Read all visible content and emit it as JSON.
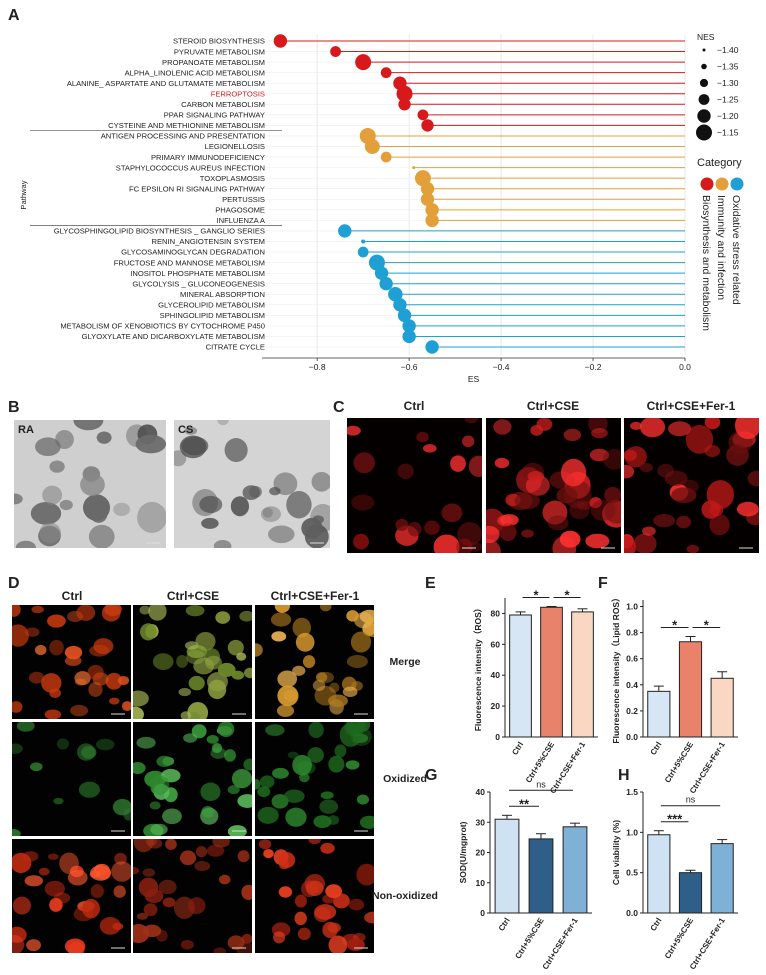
{
  "panel_labels": [
    "A",
    "B",
    "C",
    "D",
    "E",
    "F",
    "G",
    "H"
  ],
  "panel_b": {
    "labels": [
      "RA",
      "CS"
    ]
  },
  "panel_c": {
    "columns": [
      "Ctrl",
      "Ctrl+CSE",
      "Ctrl+CSE+Fer-1"
    ]
  },
  "panel_d": {
    "columns": [
      "Ctrl",
      "Ctrl+CSE",
      "Ctrl+CSE+Fer-1"
    ],
    "rows": [
      "Merge",
      "Oxidized",
      "Non-oxidized"
    ]
  },
  "chart_data": [
    {
      "type": "lollipop",
      "xlabel": "ES",
      "ylabel": "Pathway",
      "legend_title": "Category",
      "size_title": "NES",
      "categories": [
        "STEROID BIOSYNTHESIS",
        "PYRUVATE METABOLISM",
        "PROPANOATE METABOLISM",
        "ALPHA_LINOLENIC ACID METABOLISM",
        "ALANINE_ ASPARTATE AND GLUTAMATE METABOLISM",
        "FERROPTOSIS",
        "CARBON METABOLISM",
        "PPAR SIGNALING PATHWAY",
        "CYSTEINE AND METHIONINE  METABOLISM",
        "ANTIGEN PROCESSING AND PRESENTATION",
        "LEGIONELLOSIS",
        "PRIMARY IMMUNODEFICIENCY",
        "STAPHYLOCOCCUS AUREUS INFECTION",
        "TOXOPLASMOSIS",
        "FC EPSILON RI SIGNALING PATHWAY",
        "PERTUSSIS",
        "PHAGOSOME",
        "INFLUENZA A",
        "GLYCOSPHINGOLIPID BIOSYNTHESIS _ GANGLIO SERIES",
        "RENIN_ANGIOTENSIN SYSTEM",
        "GLYCOSAMINOGLYCAN DEGRADATION",
        "FRUCTOSE AND MANNOSE METABOLISM",
        "INOSITOL PHOSPHATE METABOLISM",
        "GLYCOLYSIS _ GLUCONEOGENESIS",
        "MINERAL ABSORPTION",
        "GLYCEROLIPID METABOLISM",
        "SPHINGOLIPID METABOLISM",
        "METABOLISM OF XENOBIOTICS BY CYTOCHROME P450",
        "GLYOXYLATE AND DICARBOXYLATE METABOLISM",
        "CITRATE CYCLE"
      ],
      "series": [
        {
          "name": "Biosynthesis and metabolism",
          "color": "#d7191c",
          "values": [
            -0.88,
            -0.76,
            -0.7,
            -0.65,
            -0.62,
            -0.61,
            -0.61,
            -0.57,
            -0.56,
            null,
            null,
            null,
            null,
            null,
            null,
            null,
            null,
            null,
            null,
            null,
            null,
            null,
            null,
            null,
            null,
            null,
            null,
            null,
            null,
            null
          ]
        },
        {
          "name": "Immunity and infection",
          "color": "#e3a03a",
          "values": [
            null,
            null,
            null,
            null,
            null,
            null,
            null,
            null,
            null,
            -0.69,
            -0.68,
            -0.65,
            -0.59,
            -0.57,
            -0.56,
            -0.56,
            -0.55,
            -0.55,
            null,
            null,
            null,
            null,
            null,
            null,
            null,
            null,
            null,
            null,
            null,
            null
          ]
        },
        {
          "name": "Oxidative stress related",
          "color": "#1ea0d4",
          "values": [
            null,
            null,
            null,
            null,
            null,
            null,
            null,
            null,
            null,
            null,
            null,
            null,
            null,
            null,
            null,
            null,
            null,
            null,
            -0.74,
            -0.7,
            -0.7,
            -0.67,
            -0.66,
            -0.65,
            -0.63,
            -0.62,
            -0.61,
            -0.6,
            -0.6,
            -0.55
          ]
        }
      ],
      "sizes": [
        -1.2,
        -1.25,
        -1.15,
        -1.25,
        -1.2,
        -1.15,
        -1.22,
        -1.25,
        -1.22,
        -1.15,
        -1.17,
        -1.25,
        -1.4,
        -1.15,
        -1.2,
        -1.2,
        -1.2,
        -1.2,
        -1.2,
        -1.38,
        -1.25,
        -1.15,
        -1.2,
        -1.2,
        -1.18,
        -1.2,
        -1.2,
        -1.2,
        -1.2,
        -1.2
      ],
      "size_legend": [
        {
          "value": -1.4,
          "label": "−1.40"
        },
        {
          "value": -1.35,
          "label": "−1.35"
        },
        {
          "value": -1.3,
          "label": "−1.30"
        },
        {
          "value": -1.25,
          "label": "−1.25"
        },
        {
          "value": -1.2,
          "label": "−1.20"
        },
        {
          "value": -1.15,
          "label": "−1.15"
        }
      ],
      "highlight": 5,
      "xlim": [
        -0.92,
        0
      ],
      "xticks": [
        {
          "value": -0.8,
          "label": "−0.8"
        },
        {
          "value": -0.6,
          "label": "−0.6"
        },
        {
          "value": -0.4,
          "label": "−0.4"
        },
        {
          "value": -0.2,
          "label": "−0.2"
        },
        {
          "value": 0,
          "label": "0.0"
        }
      ],
      "grid": true
    },
    {
      "type": "bar",
      "ylabel": "Fluorescence intensity（ROS）",
      "categories": [
        "Ctrl",
        "Ctrl+5%CSE",
        "Ctrl+CSE+Fer-1"
      ],
      "values": [
        79,
        84,
        81
      ],
      "errors": [
        2,
        0.5,
        2
      ],
      "colors": [
        "#d6e6f4",
        "#e8826a",
        "#f9d7c3"
      ],
      "ylim": [
        0,
        90
      ],
      "yticks": [
        0,
        20,
        40,
        60,
        80
      ],
      "annotations": [
        {
          "from": 0,
          "to": 1,
          "label": "*"
        },
        {
          "from": 1,
          "to": 2,
          "label": "*"
        }
      ]
    },
    {
      "type": "bar",
      "ylabel": "Fluorescence intensity（Lipid ROS）",
      "categories": [
        "Ctrl",
        "Ctrl+5%CSE",
        "Ctrl+CSE+Fer-1"
      ],
      "values": [
        0.35,
        0.73,
        0.45
      ],
      "errors": [
        0.04,
        0.04,
        0.05
      ],
      "colors": [
        "#d6e6f4",
        "#e8826a",
        "#f9d7c3"
      ],
      "ylim": [
        0,
        1.05
      ],
      "yticks": [
        {
          "value": 0,
          "label": "0.0"
        },
        0.2,
        0.4,
        0.6,
        0.8,
        {
          "value": 1,
          "label": "1.0"
        }
      ],
      "annotations": [
        {
          "from": 0,
          "to": 1,
          "label": "*"
        },
        {
          "from": 1,
          "to": 2,
          "label": "*"
        }
      ]
    },
    {
      "type": "bar",
      "ylabel": "SOD(U/mgprot)",
      "categories": [
        "Ctrl",
        "Ctrl+5%CSE",
        "Ctrl+CSE+Fer-1"
      ],
      "values": [
        31,
        24.5,
        28.5
      ],
      "errors": [
        1.3,
        1.7,
        1.2
      ],
      "colors": [
        "#cfe2f3",
        "#2f5f88",
        "#7fb0d5"
      ],
      "ylim": [
        0,
        40
      ],
      "yticks": [
        0,
        10,
        20,
        30,
        40
      ],
      "annotations": [
        {
          "from": 0,
          "to": 1,
          "label": "**"
        },
        {
          "from": 0,
          "to": 2,
          "label": "ns"
        }
      ]
    },
    {
      "type": "bar",
      "ylabel": "Cell viability (%)",
      "categories": [
        "Ctrl",
        "Ctrl+5%CSE",
        "Ctrl+CSE+Fer-1"
      ],
      "values": [
        0.97,
        0.5,
        0.86
      ],
      "errors": [
        0.05,
        0.03,
        0.05
      ],
      "colors": [
        "#cfe2f3",
        "#2f5f88",
        "#7fb0d5"
      ],
      "ylim": [
        0,
        1.5
      ],
      "yticks": [
        {
          "value": 0,
          "label": "0.0"
        },
        0.5,
        {
          "value": 1,
          "label": "1.0"
        },
        1.5
      ],
      "annotations": [
        {
          "from": 0,
          "to": 1,
          "label": "***"
        },
        {
          "from": 0,
          "to": 2,
          "label": "ns"
        }
      ]
    }
  ]
}
